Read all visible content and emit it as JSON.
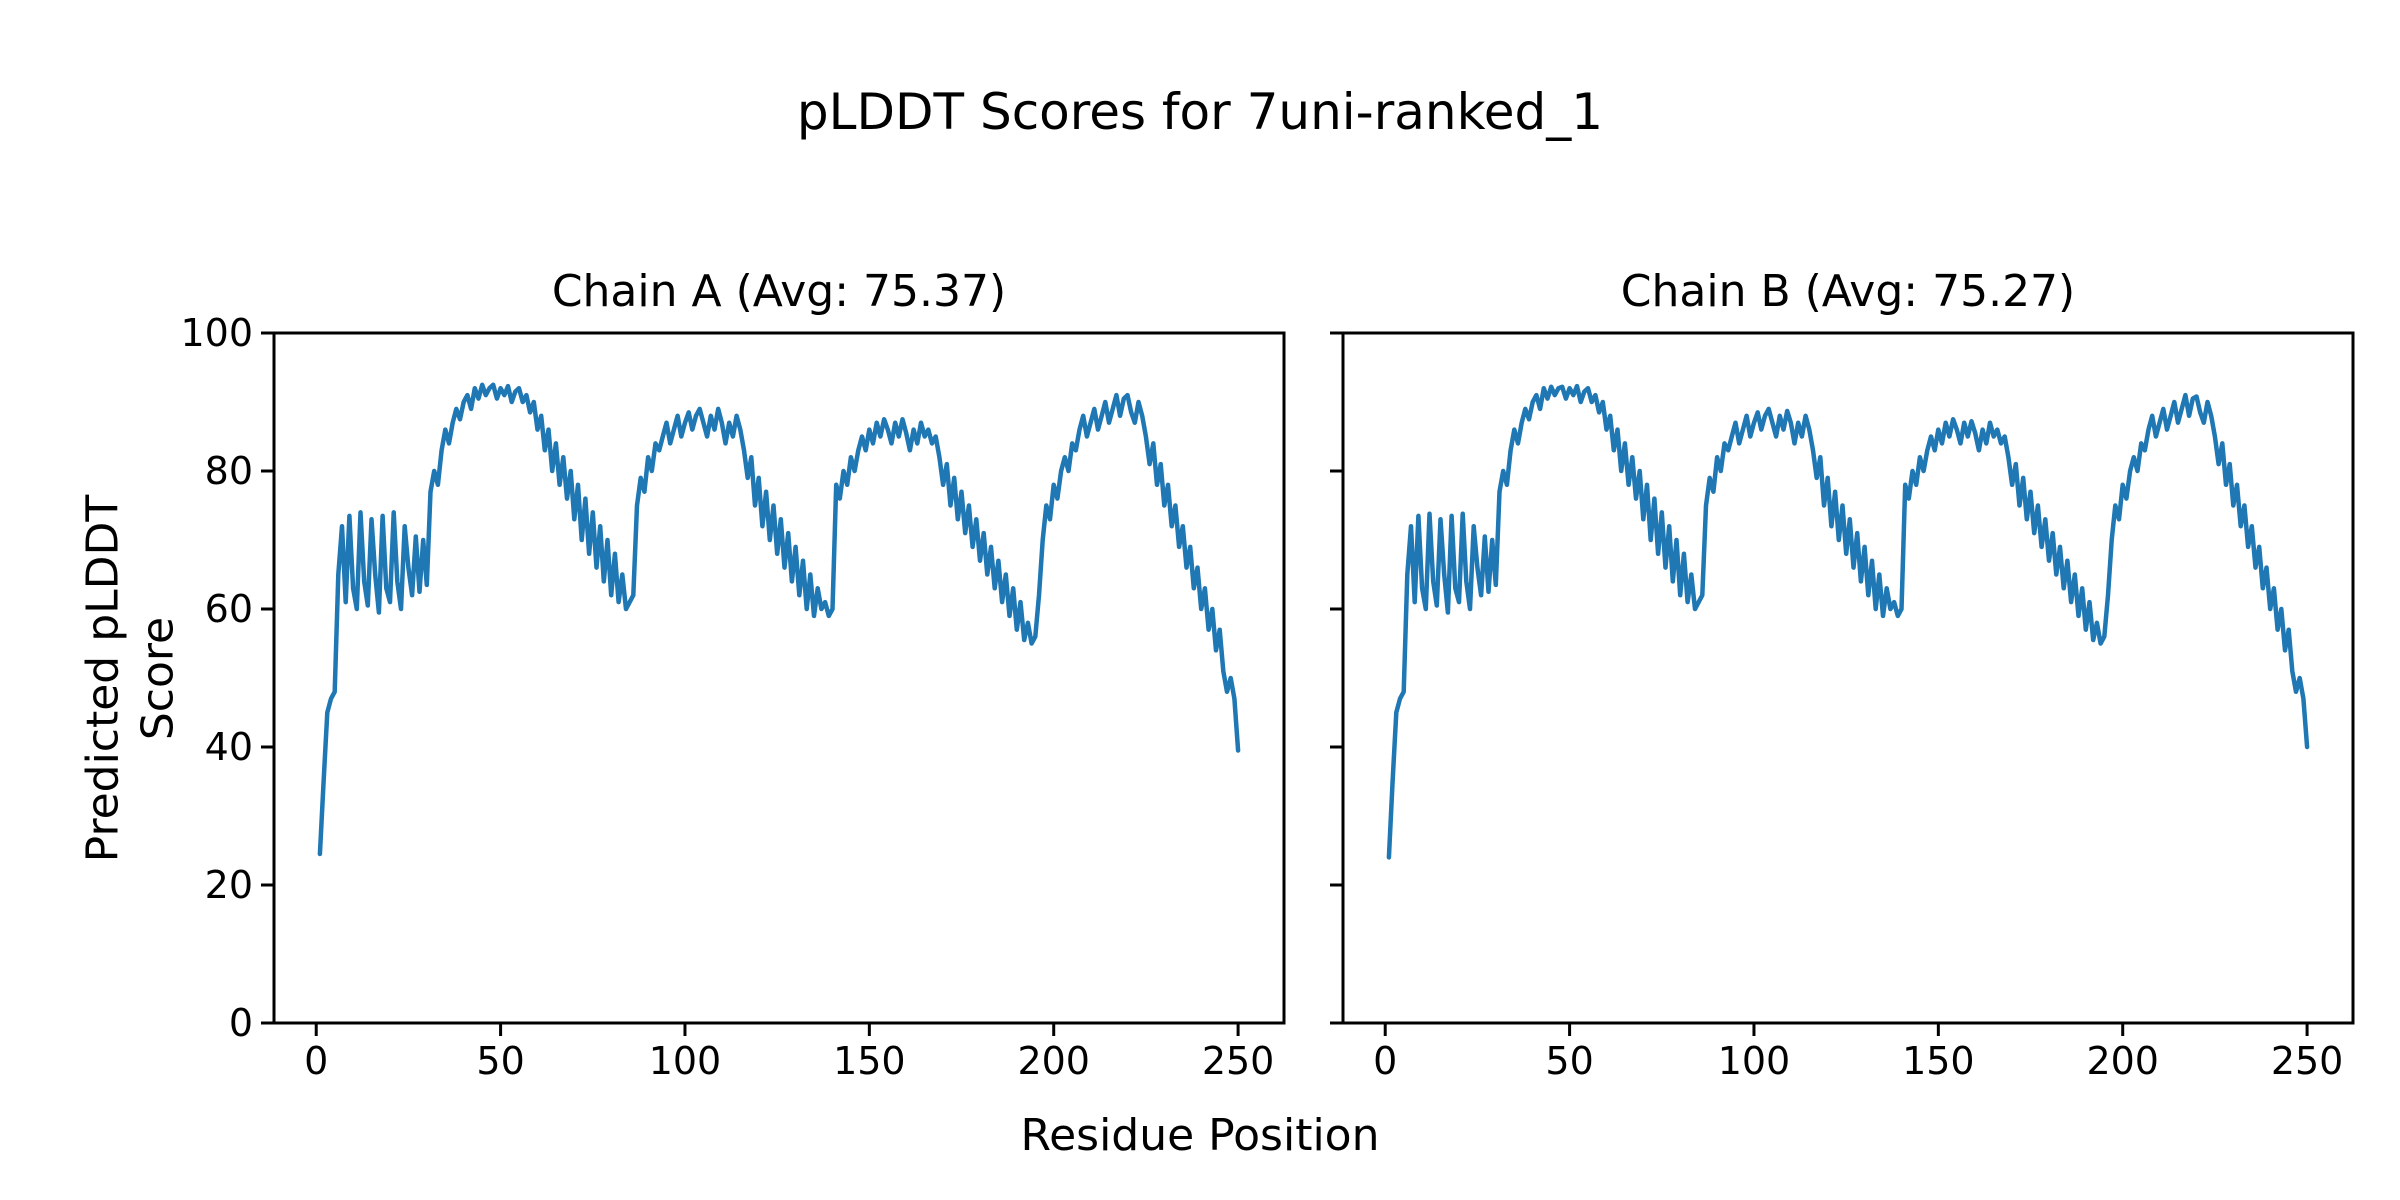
{
  "figure": {
    "suptitle": "pLDDT Scores for 7uni-ranked_1"
  },
  "chart_data": {
    "type": "line",
    "title": "pLDDT Scores for 7uni-ranked_1",
    "xlabel": "Residue Position",
    "ylabel": "Predicted pLDDT Score",
    "line_color": "#1f77b4",
    "axis_color": "#000000",
    "grid": false,
    "legend": "none",
    "x_range": [
      1,
      250
    ],
    "xlim": [
      -11.45,
      262.45
    ],
    "ylim": [
      0,
      100
    ],
    "xticks": [
      0,
      50,
      100,
      150,
      200,
      250
    ],
    "yticks": [
      0,
      20,
      40,
      60,
      80,
      100
    ],
    "subplots": [
      {
        "title": "Chain A (Avg: 75.37)",
        "chain": "A",
        "avg": 75.37,
        "show_ytick_labels": true,
        "values": [
          24.5,
          35,
          45,
          47,
          48,
          65,
          72,
          61,
          73.5,
          63,
          60,
          74,
          64,
          60.5,
          73,
          65,
          59.5,
          73.5,
          63,
          61,
          74,
          64,
          60,
          72,
          66,
          62,
          70.5,
          62.5,
          70,
          63.5,
          77,
          80,
          78,
          83,
          86,
          84,
          87,
          89,
          87.5,
          90,
          91,
          89,
          92,
          90.5,
          92.5,
          91,
          92,
          92.5,
          90.5,
          92,
          91,
          92.3,
          90,
          91.5,
          92,
          90,
          91,
          88.5,
          90,
          86,
          88,
          83,
          86,
          80,
          84,
          78,
          82,
          76,
          80,
          73,
          78,
          70,
          76,
          68,
          74,
          66,
          72,
          64,
          70,
          62,
          68,
          61,
          65,
          60,
          61,
          62,
          75,
          79,
          77,
          82,
          80,
          84,
          83,
          85,
          87,
          84,
          86,
          88,
          85,
          87,
          88.5,
          86,
          88,
          89,
          87,
          85,
          88,
          86,
          89,
          87,
          84,
          87,
          85,
          88,
          86,
          83,
          79,
          82,
          75,
          79,
          72,
          77,
          70,
          75,
          68,
          73,
          66,
          71,
          64,
          69,
          62,
          67,
          60,
          65,
          59,
          63,
          60,
          61,
          59,
          60,
          78,
          76,
          80,
          78,
          82,
          80,
          83,
          85,
          83,
          86,
          84,
          87,
          85,
          87.5,
          86,
          84,
          87,
          85,
          87.5,
          85.5,
          83,
          86,
          84,
          87,
          85,
          86,
          84,
          85,
          82,
          78,
          81,
          75,
          79,
          73,
          77,
          71,
          75,
          69,
          73,
          67,
          71,
          65,
          69,
          63,
          67,
          61,
          65,
          59,
          63,
          57,
          61,
          55.5,
          58,
          55,
          56,
          62,
          70,
          75,
          73,
          78,
          76,
          80,
          82,
          80,
          84,
          83,
          86,
          88,
          85,
          87,
          89,
          86,
          88,
          90,
          87,
          89,
          91,
          88,
          90.5,
          91,
          88.5,
          87,
          90,
          88,
          85,
          81,
          84,
          78,
          81,
          75,
          78,
          72,
          75,
          69,
          72,
          66,
          69,
          63,
          66,
          60,
          63,
          57,
          60,
          54,
          57,
          51,
          48,
          50,
          47,
          39.5
        ]
      },
      {
        "title": "Chain B (Avg: 75.27)",
        "chain": "B",
        "avg": 75.27,
        "show_ytick_labels": false,
        "values": [
          24,
          35,
          45,
          47,
          48,
          65,
          72,
          61,
          73.5,
          63,
          60,
          73.8,
          64,
          60.5,
          73,
          65,
          59.5,
          73.5,
          63,
          61,
          73.8,
          64,
          60,
          72,
          66,
          62,
          70.5,
          62.5,
          70,
          63.5,
          77,
          80,
          78,
          83,
          86,
          84,
          87,
          89,
          87.5,
          90,
          91,
          89,
          92,
          90.5,
          92.2,
          91,
          92,
          92.2,
          90.5,
          92,
          91,
          92.3,
          90,
          91.5,
          92,
          90,
          91,
          88.5,
          90,
          86,
          88,
          83,
          86,
          80,
          84,
          78,
          82,
          76,
          80,
          73,
          78,
          70,
          76,
          68,
          74,
          66,
          72,
          64,
          70,
          62,
          68,
          61,
          65,
          60,
          61,
          62,
          75,
          79,
          77,
          82,
          80,
          84,
          83,
          85,
          87,
          84,
          86,
          88,
          85,
          87,
          88.5,
          86,
          88,
          89,
          87,
          85,
          88,
          86,
          88.7,
          87,
          84,
          87,
          85,
          88,
          86,
          83,
          79,
          82,
          75,
          79,
          72,
          77,
          70,
          75,
          68,
          73,
          66,
          71,
          64,
          69,
          62,
          67,
          60,
          65,
          59,
          63,
          60,
          61,
          59,
          60,
          78,
          76,
          80,
          78,
          82,
          80,
          83,
          85,
          83,
          86,
          84,
          87,
          85,
          87.5,
          86,
          84,
          87,
          85,
          87.2,
          85.5,
          83,
          86,
          84,
          87,
          85,
          86,
          84,
          85,
          82,
          78,
          81,
          75,
          79,
          73,
          77,
          71,
          75,
          69,
          73,
          67,
          71,
          65,
          69,
          63,
          67,
          61,
          65,
          59,
          63,
          57,
          61,
          55.5,
          58,
          55,
          56,
          62,
          70,
          75,
          73,
          78,
          76,
          80,
          82,
          80,
          84,
          83,
          86,
          88,
          85,
          87,
          89,
          86,
          88,
          90,
          87,
          89,
          91,
          88,
          90.5,
          90.8,
          88.5,
          87,
          90,
          88,
          85,
          81,
          84,
          78,
          81,
          75,
          78,
          72,
          75,
          69,
          72,
          66,
          69,
          63,
          66,
          60,
          63,
          57,
          60,
          54,
          57,
          51,
          48,
          50,
          47,
          40
        ]
      }
    ]
  }
}
